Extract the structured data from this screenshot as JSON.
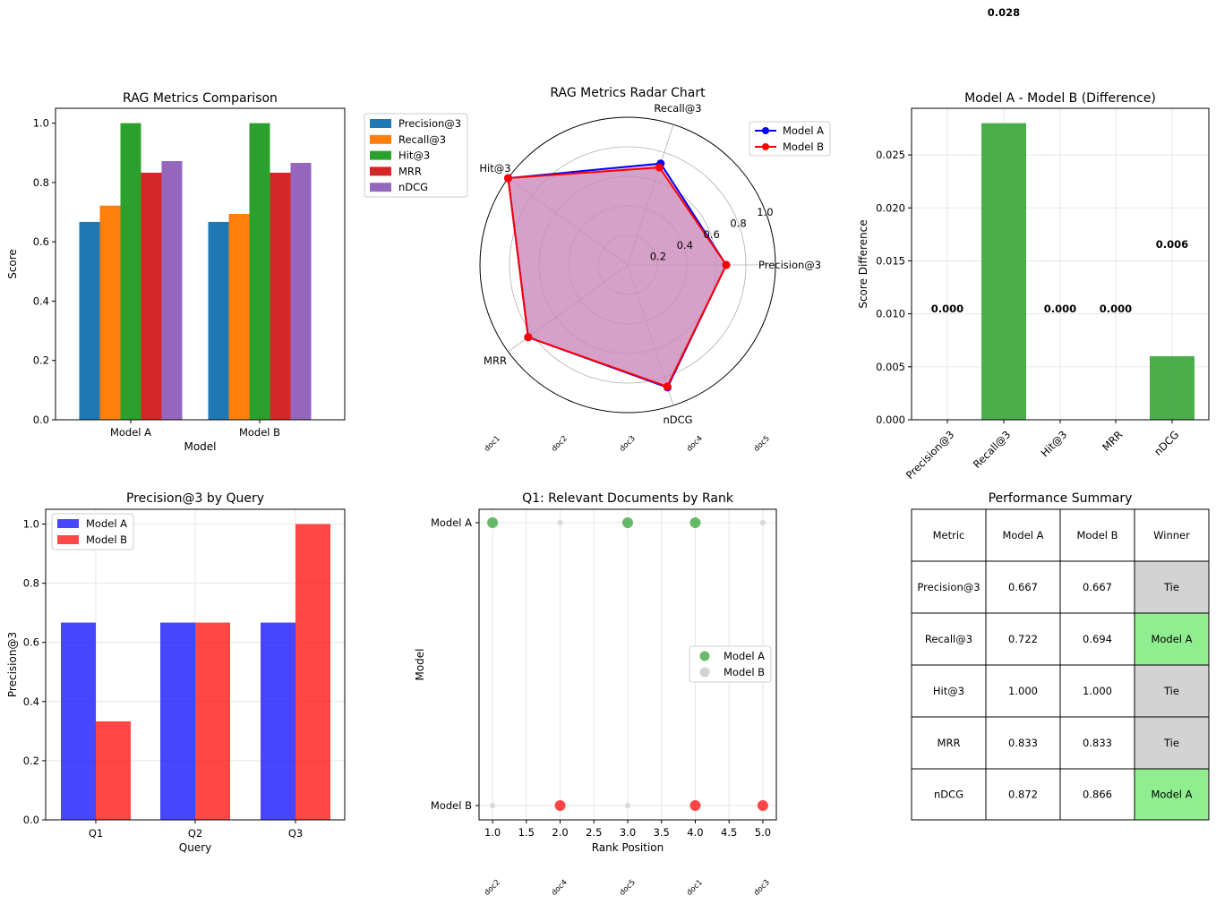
{
  "chart_data": [
    {
      "type": "bar",
      "title": "RAG Metrics Comparison",
      "xlabel": "Model",
      "ylabel": "Score",
      "ylim": [
        0,
        1.05
      ],
      "yticks": [
        "0.0",
        "0.2",
        "0.4",
        "0.6",
        "0.8",
        "1.0"
      ],
      "categories": [
        "Model A",
        "Model B"
      ],
      "series": [
        {
          "name": "Precision@3",
          "color": "#1f77b4",
          "values": [
            0.667,
            0.667
          ]
        },
        {
          "name": "Recall@3",
          "color": "#ff7f0e",
          "values": [
            0.722,
            0.694
          ]
        },
        {
          "name": "Hit@3",
          "color": "#2ca02c",
          "values": [
            1.0,
            1.0
          ]
        },
        {
          "name": "MRR",
          "color": "#d62728",
          "values": [
            0.833,
            0.833
          ]
        },
        {
          "name": "nDCG",
          "color": "#9467bd",
          "values": [
            0.872,
            0.866
          ]
        }
      ],
      "legend": "outside-right",
      "grid": false
    },
    {
      "type": "radar",
      "title": "RAG Metrics Radar Chart",
      "axes": [
        "Precision@3",
        "Recall@3",
        "Hit@3",
        "MRR",
        "nDCG"
      ],
      "rticks": [
        "0.2",
        "0.4",
        "0.6",
        "0.8",
        "1.0"
      ],
      "series": [
        {
          "name": "Model A",
          "color": "#0000ff",
          "values": [
            0.667,
            0.722,
            1.0,
            0.833,
            0.872
          ]
        },
        {
          "name": "Model B",
          "color": "#ff0000",
          "values": [
            0.667,
            0.694,
            1.0,
            0.833,
            0.866
          ]
        }
      ],
      "fill_color": "#cc88bb",
      "legend": "upper-right",
      "doc_labels": [
        "doc1",
        "doc2",
        "doc3",
        "doc4",
        "doc5"
      ]
    },
    {
      "type": "bar",
      "title": "Model A - Model B (Difference)",
      "ylabel": "Score Difference",
      "ylim": [
        0,
        0.0294
      ],
      "yticks": [
        "0.000",
        "0.005",
        "0.010",
        "0.015",
        "0.020",
        "0.025"
      ],
      "categories": [
        "Precision@3",
        "Recall@3",
        "Hit@3",
        "MRR",
        "nDCG"
      ],
      "values": [
        0.0,
        0.028,
        0.0,
        0.0,
        0.006
      ],
      "value_labels": [
        "0.000",
        "0.028",
        "0.000",
        "0.000",
        "0.006"
      ],
      "color": "#2ca02c",
      "grid": true
    },
    {
      "type": "bar",
      "title": "Precision@3 by Query",
      "xlabel": "Query",
      "ylabel": "Precision@3",
      "ylim": [
        0,
        1.05
      ],
      "yticks": [
        "0.0",
        "0.2",
        "0.4",
        "0.6",
        "0.8",
        "1.0"
      ],
      "categories": [
        "Q1",
        "Q2",
        "Q3"
      ],
      "series": [
        {
          "name": "Model A",
          "color": "#0000ff",
          "values": [
            0.667,
            0.667,
            0.667
          ]
        },
        {
          "name": "Model B",
          "color": "#ff0000",
          "values": [
            0.333,
            0.667,
            1.0
          ]
        }
      ],
      "legend": "upper-left",
      "grid": true
    },
    {
      "type": "scatter",
      "title": "Q1: Relevant Documents by Rank",
      "xlabel": "Rank Position",
      "ylabel": "Model",
      "xlim": [
        0.8,
        5.2
      ],
      "xticks": [
        "1.0",
        "1.5",
        "2.0",
        "2.5",
        "3.0",
        "3.5",
        "4.0",
        "4.5",
        "5.0"
      ],
      "categories": [
        "Model A",
        "Model B"
      ],
      "series": [
        {
          "name": "Model A",
          "color": "#2ca02c",
          "ranks": [
            1,
            2,
            3,
            4,
            5
          ],
          "relevant": [
            true,
            false,
            true,
            true,
            false
          ]
        },
        {
          "name": "Model B",
          "color": "#ff0000",
          "ranks": [
            1,
            2,
            3,
            4,
            5
          ],
          "relevant": [
            false,
            true,
            false,
            true,
            true
          ]
        }
      ],
      "legend_series": [
        "Model A",
        "Model B"
      ],
      "legend": "center-right",
      "grid": true,
      "doc_labels": [
        "doc2",
        "doc4",
        "doc5",
        "doc1",
        "doc3"
      ]
    },
    {
      "type": "table",
      "title": "Performance Summary",
      "columns": [
        "Metric",
        "Model A",
        "Model B",
        "Winner"
      ],
      "rows": [
        [
          "Precision@3",
          "0.667",
          "0.667",
          "Tie"
        ],
        [
          "Recall@3",
          "0.722",
          "0.694",
          "Model A"
        ],
        [
          "Hit@3",
          "1.000",
          "1.000",
          "Tie"
        ],
        [
          "MRR",
          "0.833",
          "0.833",
          "Tie"
        ],
        [
          "nDCG",
          "0.872",
          "0.866",
          "Model A"
        ]
      ],
      "winner_colors": {
        "Tie": "#d3d3d3",
        "Model A": "#90ee90"
      }
    }
  ]
}
